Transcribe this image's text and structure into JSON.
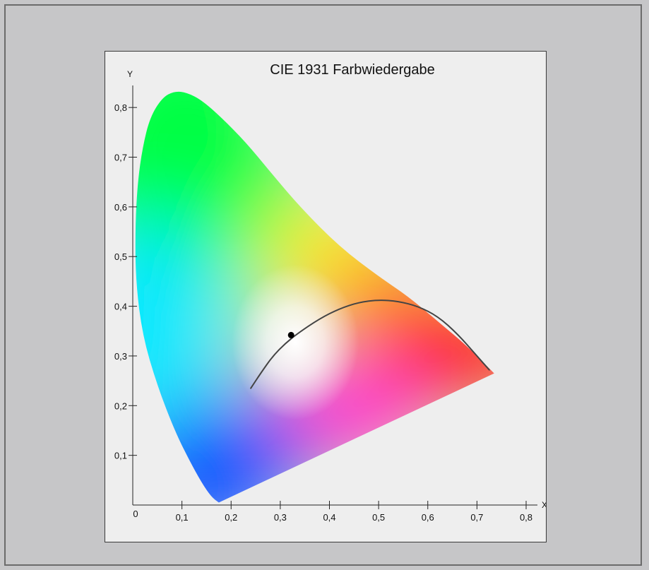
{
  "chart_data": {
    "type": "diagram",
    "title": "CIE 1931 Farbwiedergabe",
    "xlabel": "X",
    "ylabel": "Y",
    "xlim": [
      0,
      0.8
    ],
    "ylim": [
      0,
      0.85
    ],
    "origin_label": "0",
    "x_ticks": [
      {
        "value": 0.1,
        "label": "0,1"
      },
      {
        "value": 0.2,
        "label": "0,2"
      },
      {
        "value": 0.3,
        "label": "0,3"
      },
      {
        "value": 0.4,
        "label": "0,4"
      },
      {
        "value": 0.5,
        "label": "0,5"
      },
      {
        "value": 0.6,
        "label": "0,6"
      },
      {
        "value": 0.7,
        "label": "0,7"
      },
      {
        "value": 0.8,
        "label": "0,8"
      }
    ],
    "y_ticks": [
      {
        "value": 0.1,
        "label": "0,1"
      },
      {
        "value": 0.2,
        "label": "0,2"
      },
      {
        "value": 0.3,
        "label": "0,3"
      },
      {
        "value": 0.4,
        "label": "0,4"
      },
      {
        "value": 0.5,
        "label": "0,5"
      },
      {
        "value": 0.6,
        "label": "0,6"
      },
      {
        "value": 0.7,
        "label": "0,7"
      },
      {
        "value": 0.8,
        "label": "0,8"
      }
    ],
    "spectral_locus": [
      [
        0.175,
        0.005
      ],
      [
        0.16,
        0.016
      ],
      [
        0.14,
        0.045
      ],
      [
        0.115,
        0.09
      ],
      [
        0.085,
        0.15
      ],
      [
        0.05,
        0.24
      ],
      [
        0.02,
        0.34
      ],
      [
        0.006,
        0.45
      ],
      [
        0.005,
        0.56
      ],
      [
        0.01,
        0.65
      ],
      [
        0.02,
        0.72
      ],
      [
        0.035,
        0.78
      ],
      [
        0.06,
        0.82
      ],
      [
        0.085,
        0.833
      ],
      [
        0.11,
        0.83
      ],
      [
        0.14,
        0.815
      ],
      [
        0.18,
        0.78
      ],
      [
        0.23,
        0.73
      ],
      [
        0.28,
        0.67
      ],
      [
        0.34,
        0.6
      ],
      [
        0.42,
        0.52
      ],
      [
        0.5,
        0.46
      ],
      [
        0.56,
        0.42
      ],
      [
        0.62,
        0.37
      ],
      [
        0.68,
        0.32
      ],
      [
        0.735,
        0.265
      ]
    ],
    "planckian_locus": [
      [
        0.24,
        0.235
      ],
      [
        0.26,
        0.265
      ],
      [
        0.285,
        0.3
      ],
      [
        0.31,
        0.325
      ],
      [
        0.335,
        0.345
      ],
      [
        0.38,
        0.375
      ],
      [
        0.42,
        0.395
      ],
      [
        0.46,
        0.408
      ],
      [
        0.5,
        0.413
      ],
      [
        0.54,
        0.41
      ],
      [
        0.58,
        0.4
      ],
      [
        0.62,
        0.38
      ],
      [
        0.66,
        0.345
      ],
      [
        0.7,
        0.3
      ],
      [
        0.725,
        0.272
      ]
    ],
    "white_point": {
      "x": 0.322,
      "y": 0.342
    },
    "colors": {
      "background": "#c6c6c8",
      "panel": "#eeeeee",
      "locus_line": "#444444",
      "point": "#000000",
      "red": "#ff0000",
      "green": "#00ff44",
      "blue": "#0050ff",
      "white_center": "#ffffff"
    }
  }
}
